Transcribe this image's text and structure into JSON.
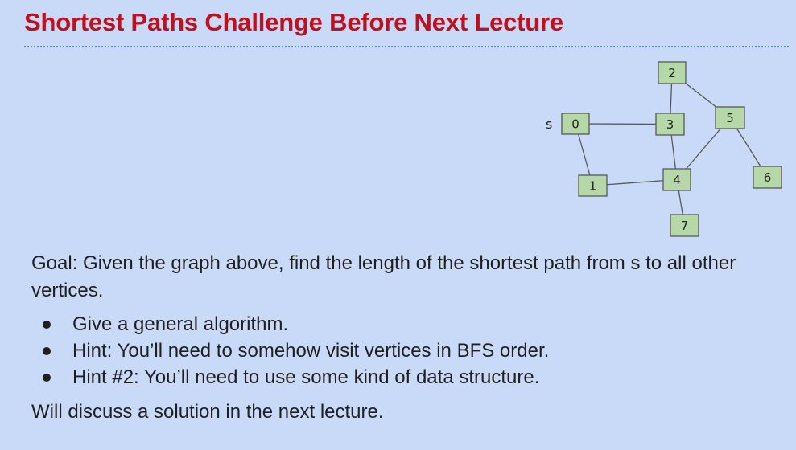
{
  "slide": {
    "title": "Shortest Paths Challenge Before Next Lecture"
  },
  "graph": {
    "source_label": "s",
    "nodes": [
      "0",
      "1",
      "2",
      "3",
      "4",
      "5",
      "6",
      "7"
    ],
    "edges": [
      [
        "0",
        "3"
      ],
      [
        "0",
        "1"
      ],
      [
        "1",
        "4"
      ],
      [
        "2",
        "3"
      ],
      [
        "2",
        "5"
      ],
      [
        "3",
        "4"
      ],
      [
        "4",
        "5"
      ],
      [
        "5",
        "6"
      ],
      [
        "4",
        "7"
      ]
    ]
  },
  "content": {
    "goal": "Goal: Given the graph above, find the length of the shortest path from s to all other vertices.",
    "bullets": [
      "Give a general algorithm.",
      "Hint: You’ll need to somehow visit vertices in BFS order.",
      "Hint #2: You’ll need to use some kind of data structure."
    ],
    "closing": "Will discuss a solution in the next lecture."
  },
  "colors": {
    "title": "#c0101e",
    "background": "#c9daf8",
    "node_fill": "#b6d7a8",
    "divider": "#4a86e8"
  }
}
